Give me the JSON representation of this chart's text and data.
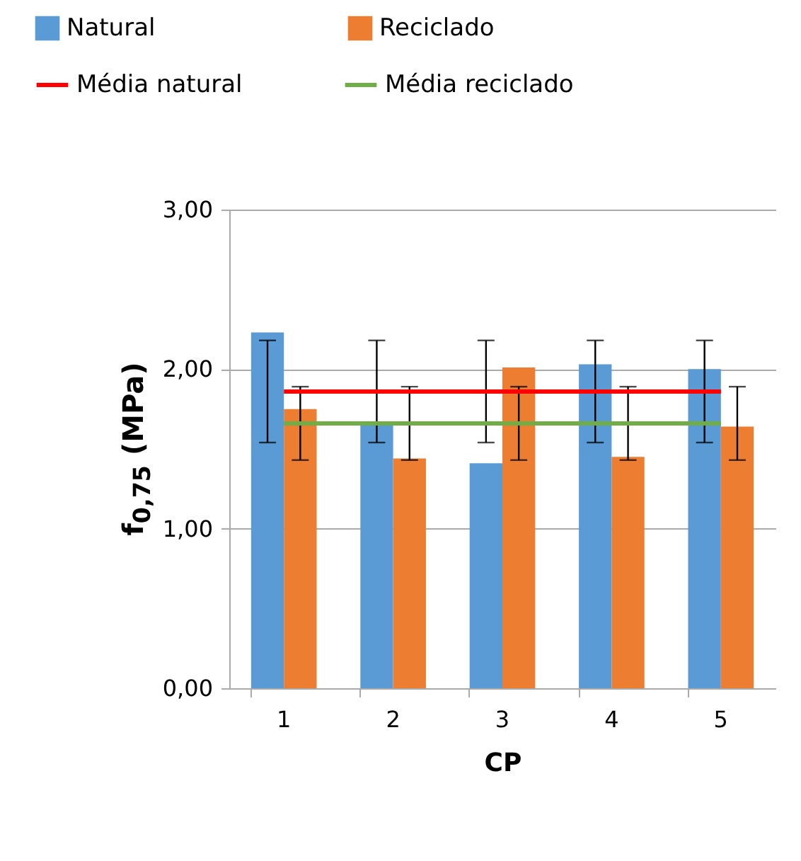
{
  "chart_data": {
    "type": "bar",
    "xlabel": "CP",
    "ylabel": "f$_{0,75}$ (MPa)",
    "categories": [
      "1",
      "2",
      "3",
      "4",
      "5"
    ],
    "series": [
      {
        "name": "Natural",
        "color": "#5b9bd5",
        "values": [
          2.23,
          1.66,
          1.41,
          2.03,
          2.0
        ],
        "errors": [
          [
            1.54,
            2.18
          ],
          [
            1.54,
            2.18
          ],
          [
            1.54,
            2.18
          ],
          [
            1.54,
            2.18
          ],
          [
            1.54,
            2.18
          ]
        ]
      },
      {
        "name": "Reciclado",
        "color": "#ed7d31",
        "values": [
          1.75,
          1.44,
          2.01,
          1.45,
          1.64
        ],
        "errors": [
          [
            1.43,
            1.89
          ],
          [
            1.43,
            1.89
          ],
          [
            1.43,
            1.89
          ],
          [
            1.43,
            1.89
          ],
          [
            1.43,
            1.89
          ]
        ]
      },
      {
        "name": "Média natural",
        "type": "line",
        "color": "#ff0000",
        "values": [
          1.86,
          1.86,
          1.86,
          1.86,
          1.86
        ]
      },
      {
        "name": "Média reciclado",
        "type": "line",
        "color": "#70ad47",
        "values": [
          1.66,
          1.66,
          1.66,
          1.66,
          1.66
        ]
      }
    ],
    "ylim": [
      0,
      3
    ],
    "yticks": [
      {
        "value": 0,
        "label": "0,00"
      },
      {
        "value": 1,
        "label": "1,00"
      },
      {
        "value": 2,
        "label": "2,00"
      },
      {
        "value": 3,
        "label": "3,00"
      }
    ],
    "grid": "y",
    "legend": "top"
  }
}
